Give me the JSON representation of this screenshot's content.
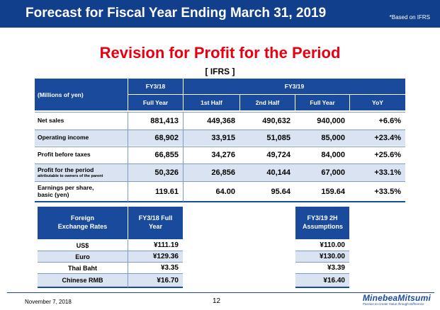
{
  "header": {
    "title": "Forecast for Fiscal Year Ending March 31, 2019",
    "note": "*Based on IFRS",
    "subtitle": "Revision for Profit for the Period",
    "standard": "[ IFRS ]"
  },
  "table": {
    "unit_label": "(Millions of yen)",
    "fy18": "FY3/18",
    "fy19": "FY3/19",
    "columns": [
      "Full Year",
      "1st Half",
      "2nd Half",
      "Full Year",
      "YoY"
    ],
    "rows": [
      {
        "label": "Net sales",
        "values": [
          "881,413",
          "449,368",
          "490,632",
          "940,000",
          "+6.6%"
        ]
      },
      {
        "label": "Operating income",
        "values": [
          "68,902",
          "33,915",
          "51,085",
          "85,000",
          "+23.4%"
        ]
      },
      {
        "label": "Profit before taxes",
        "values": [
          "66,855",
          "34,276",
          "49,724",
          "84,000",
          "+25.6%"
        ]
      },
      {
        "label": "Profit for the period",
        "sublabel": "attributable to owners of the parent",
        "values": [
          "50,326",
          "26,856",
          "40,144",
          "67,000",
          "+33.1%"
        ]
      },
      {
        "label": "Earnings per share,",
        "sublabel": "basic (yen)",
        "values": [
          "119.61",
          "64.00",
          "95.64",
          "159.64",
          "+33.5%"
        ]
      }
    ]
  },
  "fx": {
    "header_label": "Foreign Exchange Rates",
    "header_fy18": "FY3/18 Full Year",
    "header_fy19": "FY3/19 2H Assumptions",
    "rows": [
      {
        "label": "US$",
        "fy18": "¥111.19",
        "fy19": "¥110.00"
      },
      {
        "label": "Euro",
        "fy18": "¥129.36",
        "fy19": "¥130.00"
      },
      {
        "label": "Thai Baht",
        "fy18": "¥3.35",
        "fy19": "¥3.39"
      },
      {
        "label": "Chinese RMB",
        "fy18": "¥16.70",
        "fy19": "¥16.40"
      }
    ]
  },
  "footer": {
    "date": "November 7, 2018",
    "page": "12",
    "logo": "MinebeaMitsumi",
    "tagline": "Passion to Create Value through Difference"
  },
  "colors": {
    "header_bg": "#123f8b",
    "table_blue": "#1a4a9c",
    "row_shade": "#d9e3f1",
    "title_red": "#e60012"
  }
}
